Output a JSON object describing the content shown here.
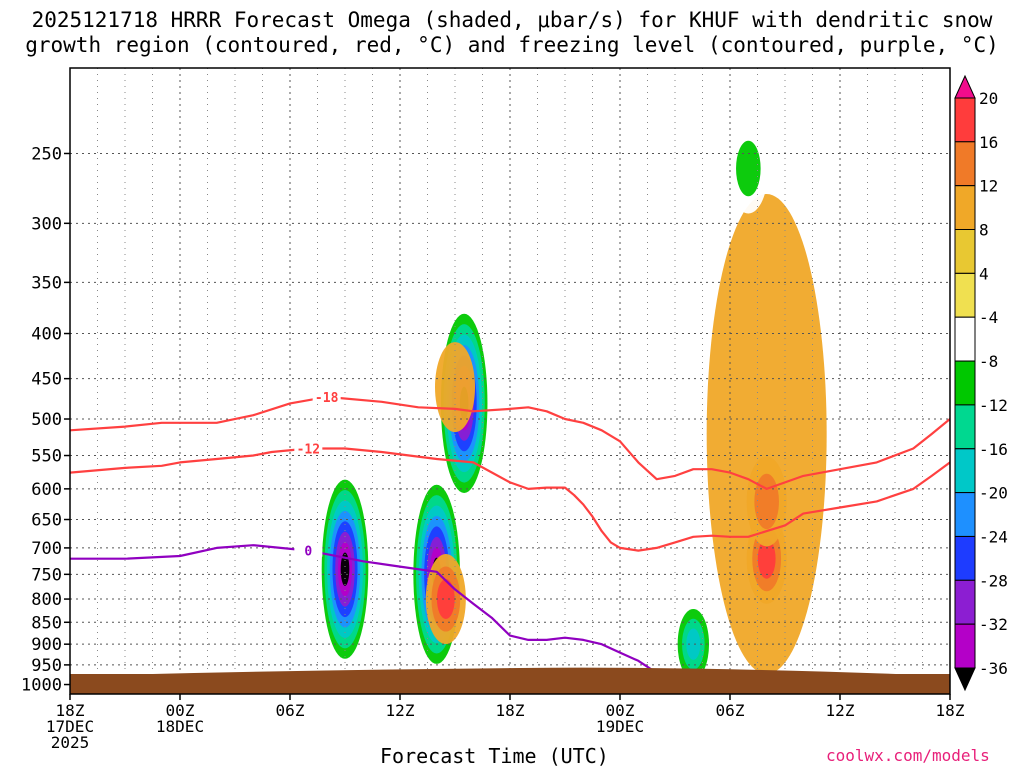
{
  "title_line1": "2025121718 HRRR Forecast Omega (shaded, μbar/s) for KHUF with dendritic snow",
  "title_line2": "growth region (contoured, red, °C) and freezing level (contoured, purple, °C)",
  "credit": "coolwx.com/models",
  "chart_data": {
    "type": "heatmap",
    "title": "2025121718 HRRR Forecast Omega (shaded, μbar/s) for KHUF with dendritic snow growth region (contoured, red, °C) and freezing level (contoured, purple, °C)",
    "xlabel": "Forecast Time (UTC)",
    "ylabel": "",
    "station": "KHUF",
    "init": "2025121718",
    "x_ticks": [
      {
        "hour": 0,
        "lines": [
          "18Z",
          "17DEC",
          "2025"
        ]
      },
      {
        "hour": 6,
        "lines": [
          "00Z",
          "18DEC"
        ]
      },
      {
        "hour": 12,
        "lines": [
          "06Z"
        ]
      },
      {
        "hour": 18,
        "lines": [
          "12Z"
        ]
      },
      {
        "hour": 24,
        "lines": [
          "18Z"
        ]
      },
      {
        "hour": 30,
        "lines": [
          "00Z",
          "19DEC"
        ]
      },
      {
        "hour": 36,
        "lines": [
          "06Z"
        ]
      },
      {
        "hour": 42,
        "lines": [
          "12Z"
        ]
      },
      {
        "hour": 48,
        "lines": [
          "18Z"
        ]
      }
    ],
    "xlim": [
      0,
      48
    ],
    "y_ticks": [
      250,
      300,
      350,
      400,
      450,
      500,
      550,
      600,
      650,
      700,
      750,
      800,
      850,
      900,
      950,
      1000
    ],
    "ylim": [
      200,
      1025
    ],
    "y_scale": "log",
    "y_inverted": true,
    "grid": true,
    "colorbar": {
      "levels": [
        20,
        16,
        12,
        8,
        4,
        -4,
        -8,
        -12,
        -16,
        -20,
        -24,
        -28,
        -32,
        -36
      ],
      "colors": [
        "#f20c8c",
        "#ff3c3c",
        "#f07a28",
        "#f0a828",
        "#e8c832",
        "#f0e050",
        "#ffffff",
        "#00c800",
        "#00d890",
        "#00c8c8",
        "#1e90ff",
        "#1e3cff",
        "#8c1ed2",
        "#b400c8",
        "#a0a0a0",
        "#000000"
      ]
    },
    "omega_features": [
      {
        "hour": 15.0,
        "pres": 740,
        "value": -38
      },
      {
        "hour": 20.0,
        "pres": 750,
        "value": -38
      },
      {
        "hour": 21.5,
        "pres": 480,
        "value": -38
      },
      {
        "hour": 20.5,
        "pres": 800,
        "value": 18
      },
      {
        "hour": 38.0,
        "pres": 720,
        "value": 16
      },
      {
        "hour": 21.0,
        "pres": 460,
        "value": 10
      },
      {
        "hour": 38.0,
        "pres": 620,
        "value": 12
      },
      {
        "hour": 37.0,
        "pres": 260,
        "value": -8
      },
      {
        "hour": 25.5,
        "pres": 330,
        "value": -6
      },
      {
        "hour": 34.0,
        "pres": 900,
        "value": -16
      }
    ],
    "contours": [
      {
        "name": "-18",
        "color": "#ff4040",
        "label": "-18",
        "points": [
          [
            0,
            515
          ],
          [
            3,
            510
          ],
          [
            5,
            505
          ],
          [
            8,
            505
          ],
          [
            10,
            495
          ],
          [
            12,
            480
          ],
          [
            14,
            472
          ],
          [
            17,
            478
          ],
          [
            19,
            485
          ],
          [
            21,
            487
          ],
          [
            22,
            490
          ],
          [
            24,
            487
          ],
          [
            25,
            485
          ],
          [
            26,
            490
          ],
          [
            27,
            500
          ],
          [
            28,
            505
          ],
          [
            29,
            515
          ],
          [
            30,
            530
          ],
          [
            31,
            560
          ],
          [
            32,
            585
          ],
          [
            33,
            580
          ],
          [
            34,
            570
          ],
          [
            35,
            570
          ],
          [
            36,
            575
          ],
          [
            37,
            585
          ],
          [
            38,
            600
          ],
          [
            39,
            590
          ],
          [
            40,
            580
          ],
          [
            42,
            570
          ],
          [
            44,
            560
          ],
          [
            46,
            540
          ],
          [
            47,
            520
          ],
          [
            48,
            500
          ]
        ]
      },
      {
        "name": "-12",
        "color": "#ff4040",
        "label": "-12",
        "points": [
          [
            0,
            575
          ],
          [
            3,
            568
          ],
          [
            5,
            565
          ],
          [
            6,
            560
          ],
          [
            8,
            555
          ],
          [
            10,
            550
          ],
          [
            11,
            545
          ],
          [
            13,
            540
          ],
          [
            15,
            540
          ],
          [
            17,
            545
          ],
          [
            20,
            555
          ],
          [
            22,
            560
          ],
          [
            24,
            590
          ],
          [
            25,
            600
          ],
          [
            26,
            598
          ],
          [
            27,
            598
          ],
          [
            27.5,
            610
          ],
          [
            28,
            625
          ],
          [
            28.5,
            645
          ],
          [
            29,
            670
          ],
          [
            29.5,
            690
          ],
          [
            30,
            700
          ],
          [
            31,
            705
          ],
          [
            32,
            700
          ],
          [
            33,
            690
          ],
          [
            34,
            680
          ],
          [
            35,
            678
          ],
          [
            36,
            680
          ],
          [
            37,
            680
          ],
          [
            38,
            670
          ],
          [
            39,
            660
          ],
          [
            40,
            640
          ],
          [
            42,
            630
          ],
          [
            44,
            620
          ],
          [
            46,
            600
          ],
          [
            47,
            580
          ],
          [
            48,
            560
          ]
        ]
      },
      {
        "name": "0",
        "color": "#9000c0",
        "label": "0",
        "points": [
          [
            0,
            720
          ],
          [
            3,
            720
          ],
          [
            6,
            715
          ],
          [
            8,
            700
          ],
          [
            10,
            695
          ],
          [
            13,
            705
          ],
          [
            16,
            725
          ],
          [
            18,
            735
          ],
          [
            20,
            745
          ],
          [
            21,
            780
          ],
          [
            22,
            810
          ],
          [
            23,
            840
          ],
          [
            24,
            880
          ],
          [
            25,
            890
          ],
          [
            26,
            890
          ],
          [
            27,
            885
          ],
          [
            28,
            890
          ],
          [
            29,
            900
          ],
          [
            30,
            920
          ],
          [
            31,
            940
          ],
          [
            32,
            970
          ],
          [
            33,
            990
          ]
        ]
      }
    ]
  }
}
